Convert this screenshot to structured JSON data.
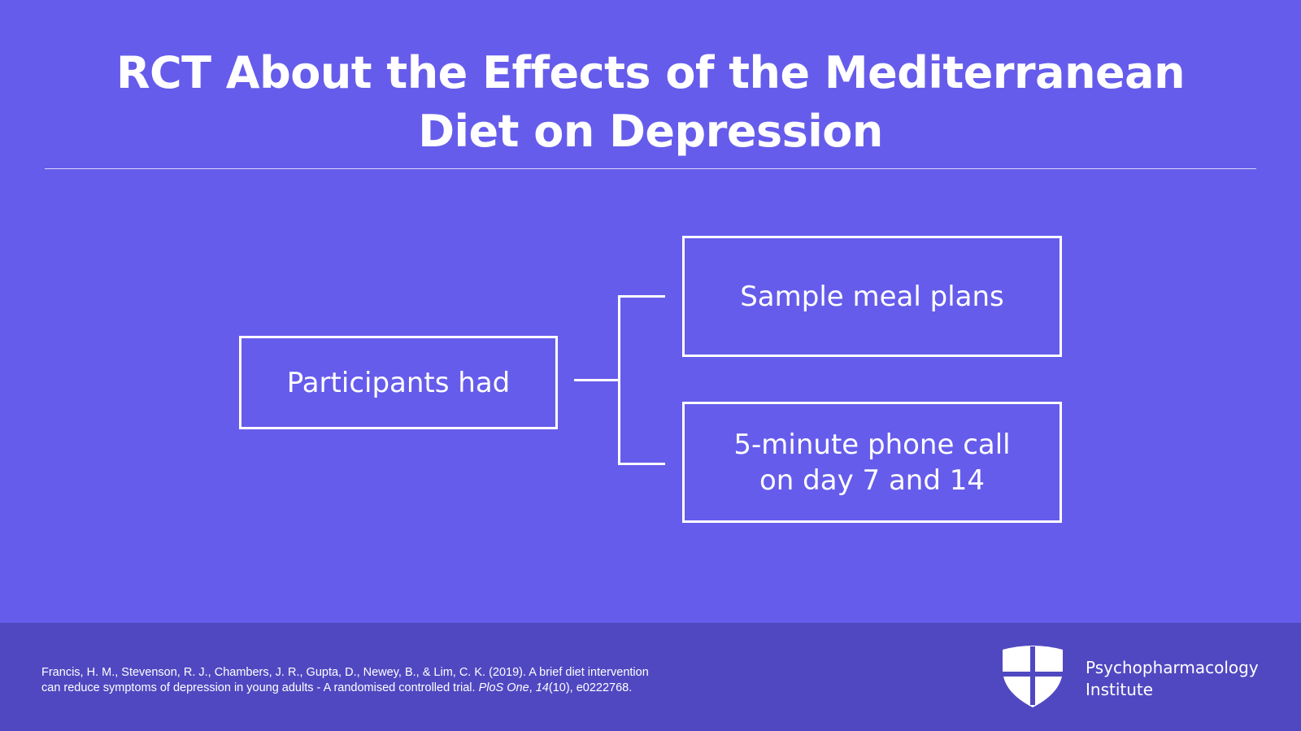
{
  "slide": {
    "title_line1": "RCT About the Effects of the Mediterranean",
    "title_line2": "Diet on Depression"
  },
  "diagram": {
    "root": "Participants had",
    "branches": [
      {
        "label": "Sample meal plans"
      },
      {
        "label_line1": "5-minute phone call",
        "label_line2": "on day 7 and 14"
      }
    ]
  },
  "footer": {
    "citation_line1": "Francis, H. M., Stevenson, R. J., Chambers, J. R., Gupta, D., Newey, B., & Lim, C. K. (2019). A brief diet intervention",
    "citation_line2_a": "can reduce symptoms of depression in young adults - A randomised controlled trial. ",
    "citation_journal": "PloS One",
    "citation_sep": ", ",
    "citation_volume": "14",
    "citation_rest": "(10), e0222768.",
    "brand_line1": "Psychopharmacology",
    "brand_line2": "Institute"
  },
  "colors": {
    "background": "#665CEB",
    "footer": "#5048C1",
    "foreground": "#FFFFFF"
  }
}
